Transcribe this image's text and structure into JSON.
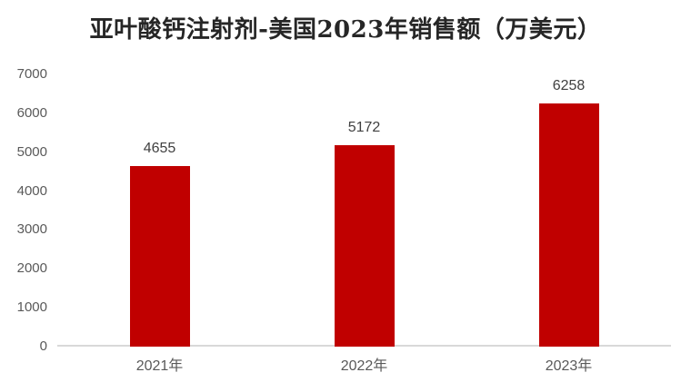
{
  "title": "亚叶酸钙注射剂-美国2023年销售额（万美元）",
  "colors": {
    "bar": "#c00000",
    "title_text": "#262626",
    "axis_tick_text": "#595959",
    "data_label_text": "#404040",
    "axis_line": "#d9d9d9",
    "background": "#ffffff"
  },
  "chart_data": {
    "type": "bar",
    "title": "亚叶酸钙注射剂-美国2023年销售额（万美元）",
    "categories": [
      "2021年",
      "2022年",
      "2023年"
    ],
    "values": [
      4655,
      5172,
      6258
    ],
    "data_labels": [
      "4655",
      "5172",
      "6258"
    ],
    "xlabel": "",
    "ylabel": "",
    "ylim": [
      0,
      7000
    ],
    "ytick_interval": 1000,
    "yticks": [
      0,
      1000,
      2000,
      3000,
      4000,
      5000,
      6000,
      7000
    ],
    "grid": false,
    "legend_position": "none",
    "bar_color": "#c00000"
  }
}
